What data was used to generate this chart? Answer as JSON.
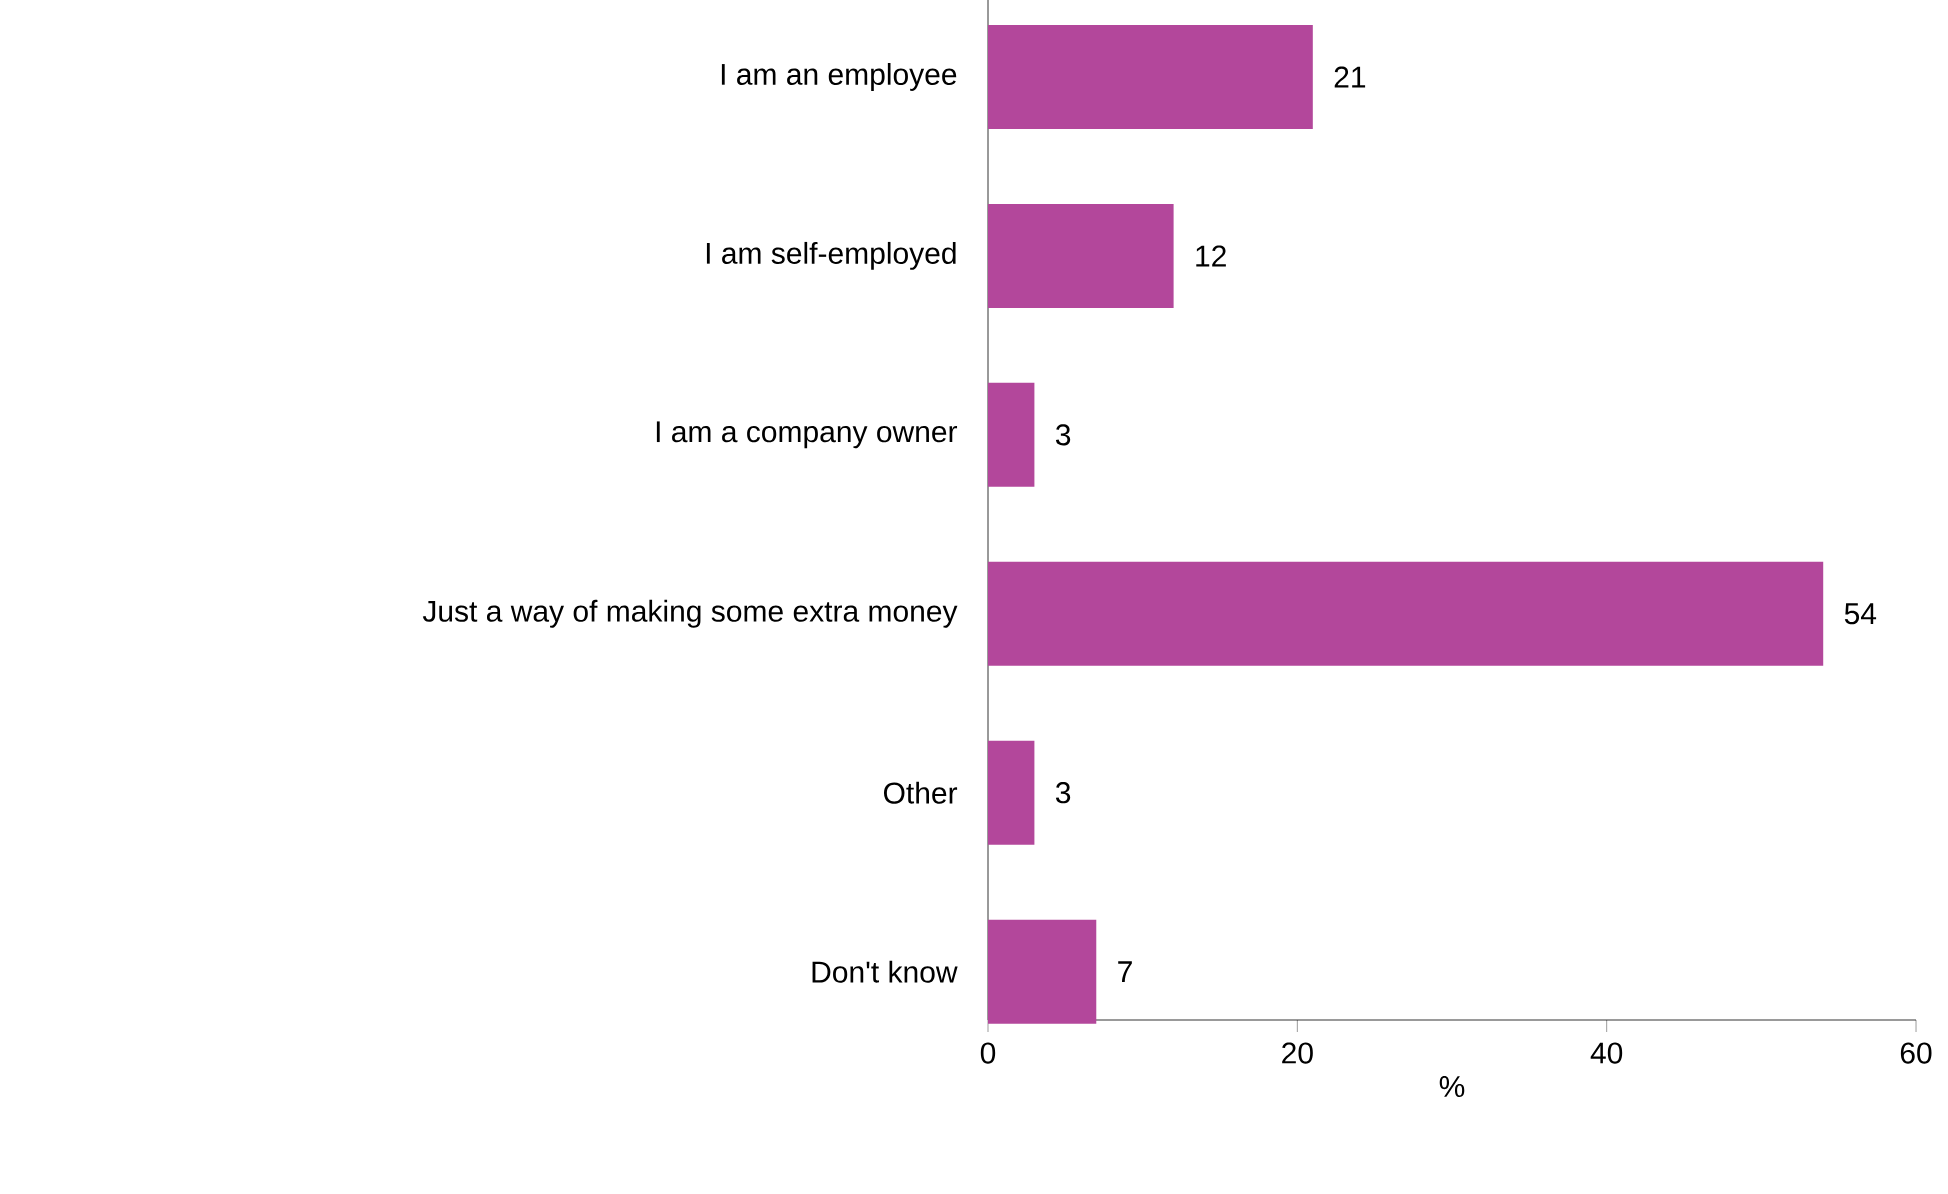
{
  "chart_data": {
    "type": "bar",
    "orientation": "horizontal",
    "categories": [
      "I am an employee",
      "I am self-employed",
      "I am a company owner",
      "Just a way of making some extra money",
      "Other",
      "Don't know"
    ],
    "values": [
      21,
      12,
      3,
      54,
      3,
      7
    ],
    "color": "#b3479b",
    "data_labels": true,
    "xlabel": "%",
    "xlim": [
      0,
      60
    ],
    "xticks": [
      0,
      20,
      40,
      60
    ],
    "grid": false
  }
}
